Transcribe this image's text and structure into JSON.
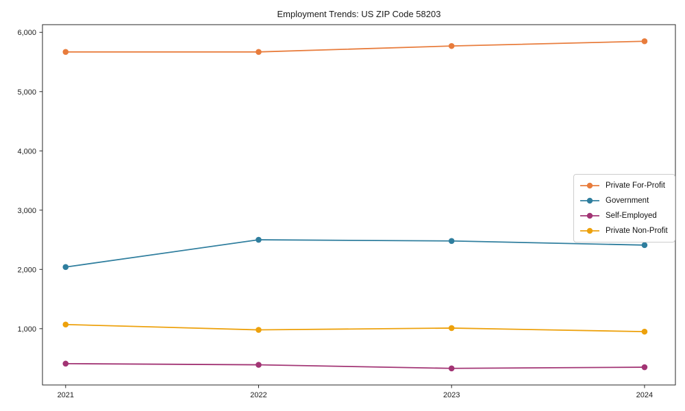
{
  "title": "Employment Trends: US ZIP Code 58203",
  "chart_data": {
    "type": "line",
    "title": "Employment Trends: US ZIP Code 58203",
    "xlabel": "",
    "ylabel": "",
    "x_labels": [
      "2021",
      "2022",
      "2023",
      "2024"
    ],
    "series": [
      {
        "name": "Private For-Profit",
        "color": "#e87c3c",
        "values": [
          5670,
          5670,
          5770,
          5850
        ]
      },
      {
        "name": "Government",
        "color": "#2f7e9e",
        "values": [
          2040,
          2500,
          2480,
          2410
        ]
      },
      {
        "name": "Self-Employed",
        "color": "#a23474",
        "values": [
          410,
          390,
          330,
          350
        ]
      },
      {
        "name": "Private Non-Profit",
        "color": "#eda10c",
        "values": [
          1070,
          980,
          1010,
          950
        ]
      }
    ],
    "yticks": [
      {
        "value": 1000,
        "label": "1,000"
      },
      {
        "value": 2000,
        "label": "2,000"
      },
      {
        "value": 3000,
        "label": "3,000"
      },
      {
        "value": 4000,
        "label": "4,000"
      },
      {
        "value": 5000,
        "label": "5,000"
      },
      {
        "value": 6000,
        "label": "6,000"
      }
    ],
    "ylim": [
      50,
      6130
    ],
    "xlim": [
      -0.12,
      3.16
    ],
    "grid": false,
    "legend_position": "right-middle"
  }
}
